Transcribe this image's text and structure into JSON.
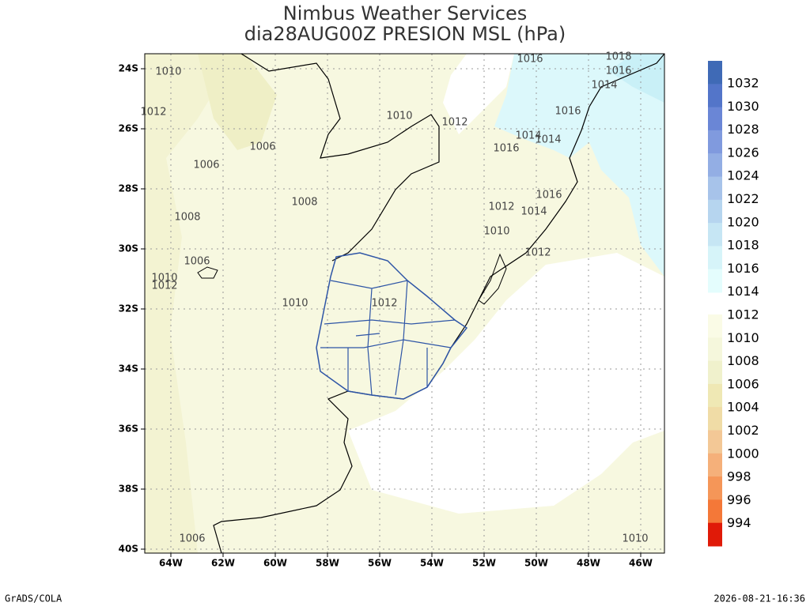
{
  "title": [
    "Nimbus Weather Services",
    "dia28AUG00Z PRESION MSL (hPa)"
  ],
  "lat_labels": [
    "24S",
    "26S",
    "28S",
    "30S",
    "32S",
    "34S",
    "36S",
    "38S",
    "40S"
  ],
  "lon_labels": [
    "64W",
    "62W",
    "60W",
    "58W",
    "56W",
    "54W",
    "52W",
    "50W",
    "48W",
    "46W"
  ],
  "colorbar": {
    "upper_labels": [
      "1032",
      "1030",
      "1028",
      "1026",
      "1024",
      "1022",
      "1020",
      "1018",
      "1016",
      "1014"
    ],
    "upper_colors": [
      "#3f6ab6",
      "#5375c9",
      "#6a86d6",
      "#809ade",
      "#93aee4",
      "#a7c3ea",
      "#b6d5ef",
      "#c6e6f4",
      "#d6f4f9",
      "#e4fdfd"
    ],
    "lower_labels": [
      "1012",
      "1010",
      "1008",
      "1006",
      "1004",
      "1002",
      "1000",
      "998",
      "996",
      "994"
    ],
    "lower_colors": [
      "#fafbe6",
      "#f5f7dc",
      "#f0f1cc",
      "#efe8b4",
      "#f0dca6",
      "#f3c896",
      "#f5b07a",
      "#f59658",
      "#f47838",
      "#e01a08"
    ]
  },
  "contour_labels": [
    "1010",
    "1010",
    "1010",
    "1010",
    "1010",
    "1012",
    "1012",
    "1012",
    "1012",
    "1012",
    "1006",
    "1006",
    "1006",
    "1006",
    "1008",
    "1008",
    "1016",
    "1016",
    "1016",
    "1016",
    "1016",
    "1018",
    "1014",
    "1014",
    "1014",
    "1014",
    "1010",
    "1012"
  ],
  "footer": {
    "left": "GrADS/COLA",
    "right": "2026-08-21-16:36"
  }
}
